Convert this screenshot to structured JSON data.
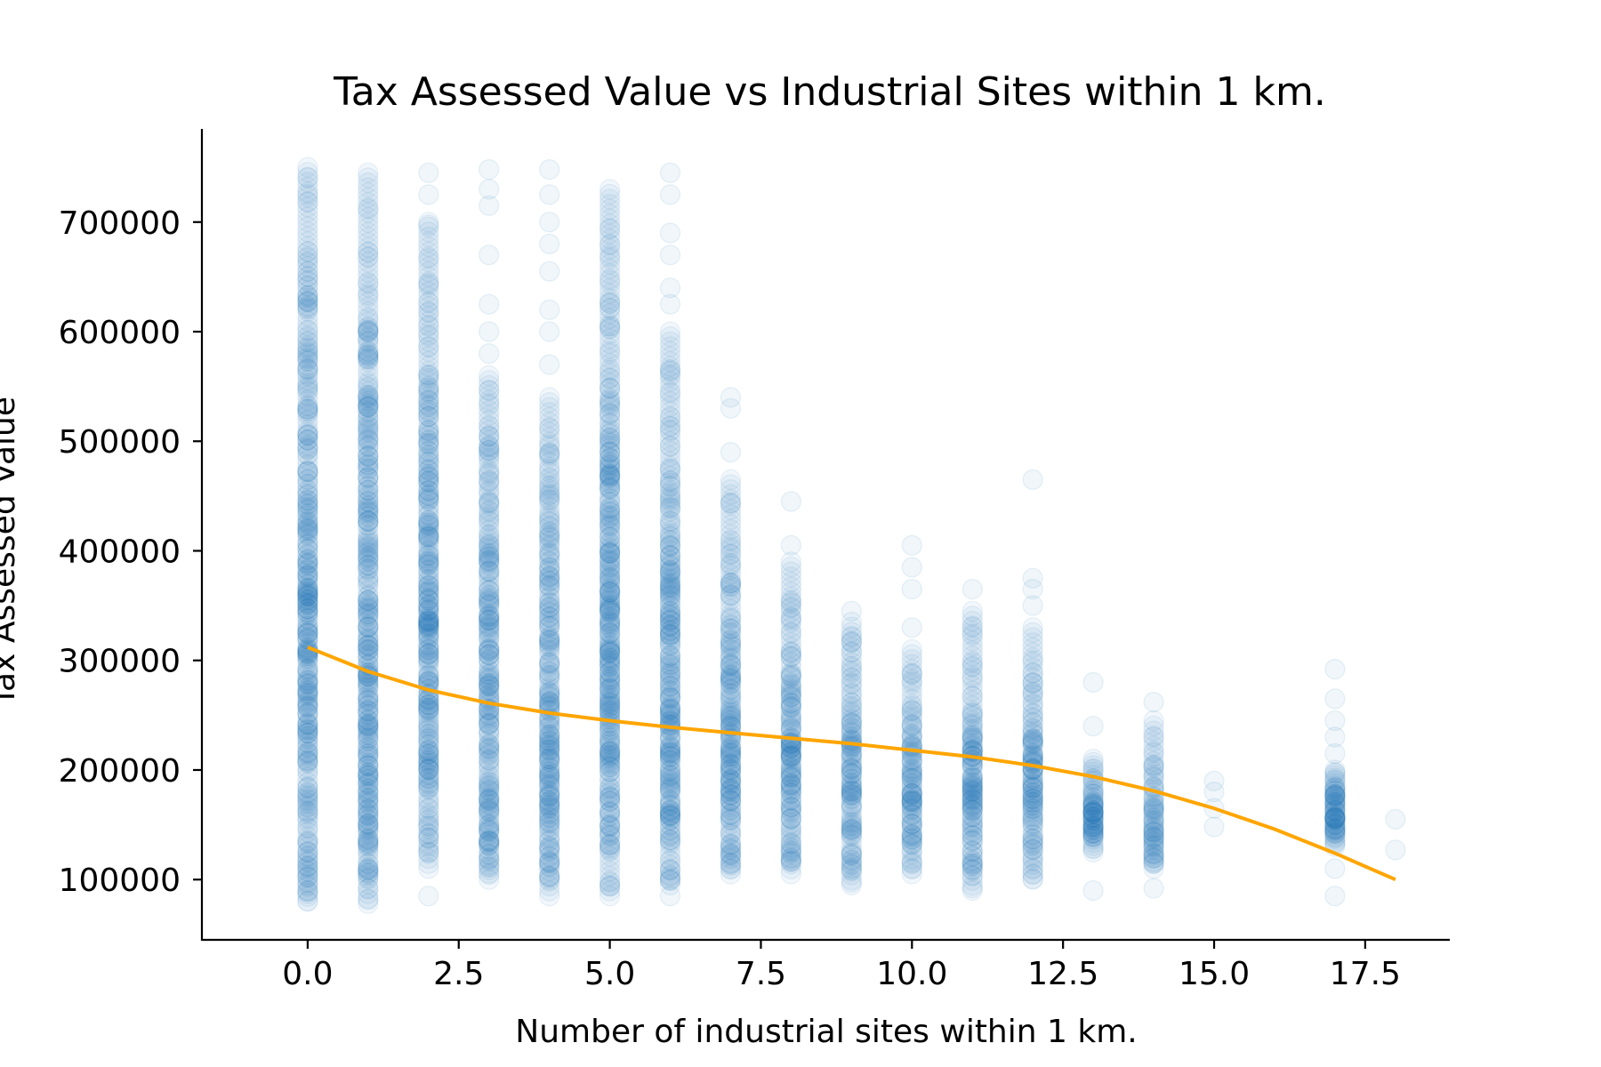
{
  "chart_data": {
    "type": "scatter",
    "title": "Tax Assessed Value vs Industrial Sites within 1 km.",
    "xlabel": "Number of industrial sites within 1 km.",
    "ylabel": "Tax Assessed Value",
    "xlim": [
      -1.75,
      18.9
    ],
    "ylim": [
      45000,
      785000
    ],
    "xticks": [
      {
        "value": 0,
        "label": "0.0"
      },
      {
        "value": 2.5,
        "label": "2.5"
      },
      {
        "value": 5,
        "label": "5.0"
      },
      {
        "value": 7.5,
        "label": "7.5"
      },
      {
        "value": 10,
        "label": "10.0"
      },
      {
        "value": 12.5,
        "label": "12.5"
      },
      {
        "value": 15,
        "label": "15.0"
      },
      {
        "value": 17.5,
        "label": "17.5"
      }
    ],
    "yticks": [
      {
        "value": 100000,
        "label": "100000"
      },
      {
        "value": 200000,
        "label": "200000"
      },
      {
        "value": 300000,
        "label": "300000"
      },
      {
        "value": 400000,
        "label": "400000"
      },
      {
        "value": 500000,
        "label": "500000"
      },
      {
        "value": 600000,
        "label": "600000"
      },
      {
        "value": 700000,
        "label": "700000"
      }
    ],
    "grid": false,
    "point_color": "#1f77b4",
    "point_opacity": 0.06,
    "trend_color": "#ffa500",
    "scatter_groups": [
      {
        "x": 0,
        "dense_min": 80000,
        "dense_max": 750000,
        "sparse": []
      },
      {
        "x": 1,
        "dense_min": 78000,
        "dense_max": 745000,
        "sparse": []
      },
      {
        "x": 2,
        "dense_min": 110000,
        "dense_max": 700000,
        "sparse": [
          85000,
          725000,
          745000
        ]
      },
      {
        "x": 3,
        "dense_min": 100000,
        "dense_max": 560000,
        "sparse": [
          580000,
          600000,
          625000,
          670000,
          715000,
          730000,
          748000
        ]
      },
      {
        "x": 4,
        "dense_min": 85000,
        "dense_max": 540000,
        "sparse": [
          570000,
          600000,
          620000,
          655000,
          680000,
          700000,
          725000,
          748000
        ]
      },
      {
        "x": 5,
        "dense_min": 85000,
        "dense_max": 730000,
        "sparse": []
      },
      {
        "x": 6,
        "dense_min": 95000,
        "dense_max": 600000,
        "sparse": [
          85000,
          625000,
          640000,
          670000,
          690000,
          725000,
          745000
        ]
      },
      {
        "x": 7,
        "dense_min": 105000,
        "dense_max": 465000,
        "sparse": [
          490000,
          530000,
          540000
        ]
      },
      {
        "x": 8,
        "dense_min": 105000,
        "dense_max": 390000,
        "sparse": [
          405000,
          445000
        ]
      },
      {
        "x": 9,
        "dense_min": 95000,
        "dense_max": 335000,
        "sparse": [
          345000
        ]
      },
      {
        "x": 10,
        "dense_min": 105000,
        "dense_max": 310000,
        "sparse": [
          330000,
          365000,
          385000,
          405000
        ]
      },
      {
        "x": 11,
        "dense_min": 90000,
        "dense_max": 345000,
        "sparse": [
          365000
        ]
      },
      {
        "x": 12,
        "dense_min": 100000,
        "dense_max": 330000,
        "sparse": [
          350000,
          365000,
          375000,
          465000
        ]
      },
      {
        "x": 13,
        "dense_min": 125000,
        "dense_max": 210000,
        "sparse": [
          90000,
          240000,
          280000
        ]
      },
      {
        "x": 14,
        "dense_min": 110000,
        "dense_max": 245000,
        "sparse": [
          92000,
          262000
        ]
      },
      {
        "x": 15,
        "dense_min": 0,
        "dense_max": 0,
        "sparse": [
          148000,
          165000,
          180000,
          190000
        ]
      },
      {
        "x": 17,
        "dense_min": 130000,
        "dense_max": 200000,
        "sparse": [
          85000,
          110000,
          215000,
          230000,
          245000,
          265000,
          292000
        ]
      },
      {
        "x": 18,
        "dense_min": 0,
        "dense_max": 0,
        "sparse": [
          127000,
          155000
        ]
      }
    ],
    "trend_line": {
      "x": [
        0,
        1,
        2,
        3,
        4,
        5,
        6,
        7,
        8,
        9,
        10,
        11,
        12,
        13,
        14,
        15,
        16,
        17,
        18
      ],
      "y": [
        312000,
        290000,
        273000,
        261000,
        252000,
        245000,
        239000,
        234000,
        229000,
        224000,
        218000,
        212000,
        204000,
        194000,
        181000,
        165000,
        146000,
        124000,
        100000
      ]
    }
  }
}
